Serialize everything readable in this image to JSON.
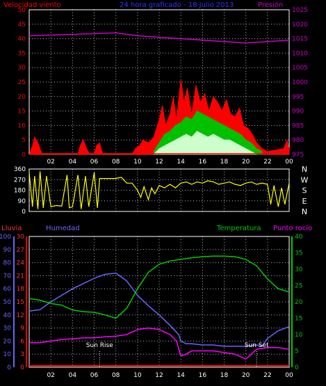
{
  "colors": {
    "wind_avg": "#ff0000",
    "wind_gust_mid": "#00c000",
    "wind_low": "#ccffcc",
    "pressure": "#cc00cc",
    "direction": "#ffff00",
    "lluvia": "#ff0000",
    "humedad": "#6666ff",
    "temperatura": "#00cc00",
    "punto_rocio": "#ff00ff",
    "grid": "#ffffff",
    "axis_text": "#ffffff"
  },
  "header": {
    "left": "Velocidad viento",
    "center": "24 hora graficado - 18 Julio 2013",
    "right": "Presión"
  },
  "chart_data": [
    {
      "type": "area",
      "name": "wind-pressure",
      "x_ticks": [
        "02",
        "04",
        "06",
        "08",
        "10",
        "12",
        "14",
        "16",
        "18",
        "20",
        "22",
        "00"
      ],
      "y_left_ticks": [
        "0",
        "5",
        "10",
        "15",
        "20",
        "25",
        "30",
        "35",
        "40",
        "45",
        "50"
      ],
      "y_right_ticks": [
        "975",
        "980",
        "985",
        "990",
        "995",
        "1000",
        "1005",
        "1010",
        "1015",
        "1020",
        "1025"
      ],
      "ylim": [
        0,
        50
      ],
      "ylim_right": [
        975,
        1025
      ],
      "series": [
        {
          "kind": "pressure",
          "values": [
            [
              0,
              1016
            ],
            [
              4,
              1016.5
            ],
            [
              8,
              1017
            ],
            [
              10,
              1016
            ],
            [
              14,
              1015
            ],
            [
              18,
              1014
            ],
            [
              20,
              1013.5
            ],
            [
              22,
              1014
            ],
            [
              24,
              1014.5
            ]
          ]
        },
        {
          "kind": "wind_avg",
          "values": [
            [
              0,
              0
            ],
            [
              0.3,
              3
            ],
            [
              0.5,
              6
            ],
            [
              0.8,
              4
            ],
            [
              1.2,
              0
            ],
            [
              4.5,
              0
            ],
            [
              4.7,
              3
            ],
            [
              5,
              5
            ],
            [
              5.3,
              2
            ],
            [
              5.6,
              0
            ],
            [
              6,
              0
            ],
            [
              6.2,
              3
            ],
            [
              6.5,
              4
            ],
            [
              6.8,
              0
            ],
            [
              9.5,
              0
            ],
            [
              9.8,
              2
            ],
            [
              10.2,
              3
            ],
            [
              10.5,
              5
            ],
            [
              11,
              4
            ],
            [
              11.5,
              6
            ],
            [
              12,
              12
            ],
            [
              12.3,
              17
            ],
            [
              12.6,
              10
            ],
            [
              13,
              14
            ],
            [
              13.3,
              20
            ],
            [
              13.6,
              12
            ],
            [
              14,
              26
            ],
            [
              14.3,
              18
            ],
            [
              14.6,
              23
            ],
            [
              15,
              14
            ],
            [
              15.4,
              24
            ],
            [
              15.8,
              18
            ],
            [
              16.2,
              21
            ],
            [
              16.6,
              15
            ],
            [
              17,
              20
            ],
            [
              17.4,
              18
            ],
            [
              17.8,
              15
            ],
            [
              18.2,
              19
            ],
            [
              18.6,
              14
            ],
            [
              19,
              13
            ],
            [
              19.4,
              16
            ],
            [
              19.8,
              10
            ],
            [
              20.2,
              9
            ],
            [
              20.6,
              7
            ],
            [
              21,
              4
            ],
            [
              21.5,
              2
            ],
            [
              22,
              1
            ],
            [
              23.5,
              2
            ],
            [
              23.8,
              5
            ],
            [
              24,
              2
            ]
          ]
        },
        {
          "kind": "wind_gust_mid",
          "values": [
            [
              11.5,
              1
            ],
            [
              12,
              4
            ],
            [
              12.5,
              7
            ],
            [
              13,
              8
            ],
            [
              13.5,
              10
            ],
            [
              14,
              11
            ],
            [
              14.5,
              13
            ],
            [
              15,
              12
            ],
            [
              15.5,
              15
            ],
            [
              16,
              14
            ],
            [
              16.5,
              13
            ],
            [
              17,
              12
            ],
            [
              17.5,
              11
            ],
            [
              18,
              10
            ],
            [
              18.5,
              9
            ],
            [
              19,
              8
            ],
            [
              19.5,
              7
            ],
            [
              20,
              5
            ],
            [
              20.5,
              4
            ],
            [
              21,
              2
            ],
            [
              21.5,
              1
            ]
          ]
        },
        {
          "kind": "wind_low",
          "values": [
            [
              11.5,
              0
            ],
            [
              12,
              2
            ],
            [
              12.5,
              3
            ],
            [
              13,
              4
            ],
            [
              13.5,
              5
            ],
            [
              14,
              6
            ],
            [
              14.5,
              7
            ],
            [
              15,
              6
            ],
            [
              15.5,
              8
            ],
            [
              16,
              7
            ],
            [
              16.5,
              6
            ],
            [
              17,
              7
            ],
            [
              17.5,
              6
            ],
            [
              18,
              5
            ],
            [
              18.5,
              5
            ],
            [
              19,
              4
            ],
            [
              19.5,
              3
            ],
            [
              20,
              2
            ],
            [
              20.5,
              1
            ],
            [
              21,
              0
            ]
          ]
        }
      ]
    },
    {
      "type": "scatter",
      "name": "wind-direction",
      "y_ticks": [
        "360",
        "270",
        "180",
        "90",
        "0"
      ],
      "y_right_labels": [
        "N",
        "W",
        "S",
        "E",
        "N"
      ],
      "ylim": [
        0,
        360
      ],
      "series": [
        {
          "kind": "direction",
          "values": [
            [
              0,
              330
            ],
            [
              0.3,
              40
            ],
            [
              0.5,
              300
            ],
            [
              0.8,
              20
            ],
            [
              1,
              340
            ],
            [
              1.3,
              30
            ],
            [
              1.6,
              300
            ],
            [
              2,
              40
            ],
            [
              2.5,
              50
            ],
            [
              3,
              45
            ],
            [
              3.5,
              310
            ],
            [
              3.7,
              30
            ],
            [
              4,
              40
            ],
            [
              4.5,
              310
            ],
            [
              4.8,
              20
            ],
            [
              5.2,
              300
            ],
            [
              5.5,
              40
            ],
            [
              6,
              330
            ],
            [
              6.3,
              30
            ],
            [
              6.5,
              280
            ],
            [
              6.8,
              280
            ],
            [
              7.5,
              280
            ],
            [
              8,
              280
            ],
            [
              8.5,
              290
            ],
            [
              9,
              240
            ],
            [
              9.5,
              240
            ],
            [
              10,
              180
            ],
            [
              10.3,
              120
            ],
            [
              10.6,
              210
            ],
            [
              11,
              100
            ],
            [
              11.3,
              200
            ],
            [
              11.6,
              150
            ],
            [
              12,
              220
            ],
            [
              12.5,
              200
            ],
            [
              13,
              230
            ],
            [
              13.5,
              200
            ],
            [
              14,
              240
            ],
            [
              14.5,
              250
            ],
            [
              15,
              230
            ],
            [
              15.5,
              250
            ],
            [
              16,
              240
            ],
            [
              16.5,
              260
            ],
            [
              17,
              250
            ],
            [
              17.5,
              230
            ],
            [
              18,
              240
            ],
            [
              18.5,
              250
            ],
            [
              19,
              230
            ],
            [
              19.5,
              220
            ],
            [
              20,
              240
            ],
            [
              20.5,
              250
            ],
            [
              21,
              230
            ],
            [
              21.5,
              240
            ],
            [
              22,
              230
            ],
            [
              22.3,
              60
            ],
            [
              22.6,
              220
            ],
            [
              23,
              40
            ],
            [
              23.3,
              200
            ],
            [
              23.6,
              60
            ],
            [
              24,
              240
            ]
          ]
        }
      ]
    },
    {
      "type": "line",
      "name": "temp-humidity",
      "headers": {
        "lluvia": "Lluvia",
        "humedad": "Humedad",
        "temperatura": "Temperatura",
        "punto_rocio": "Punto rocío"
      },
      "y_far_left_ticks": [
        "0",
        "10",
        "20",
        "30",
        "40",
        "50",
        "60",
        "70",
        "80",
        "90",
        "100"
      ],
      "y_left_ticks": [
        "0",
        "3",
        "6",
        "9",
        "12",
        "15",
        "18",
        "21",
        "24",
        "27",
        "30"
      ],
      "y_right_ticks": [
        "0",
        "5",
        "10",
        "15",
        "20",
        "25",
        "30",
        "35",
        "40"
      ],
      "ylim_humedad": [
        0,
        100
      ],
      "ylim_lluvia": [
        0,
        30
      ],
      "ylim_temp": [
        0,
        40
      ],
      "annotations": [
        {
          "text": "Sun Rise",
          "x": 6.5
        },
        {
          "text": "Sun Set",
          "x": 21.0
        }
      ],
      "series": [
        {
          "kind": "humedad",
          "values": [
            [
              0,
              43
            ],
            [
              1,
              44
            ],
            [
              2,
              50
            ],
            [
              3,
              55
            ],
            [
              4,
              60
            ],
            [
              5,
              64
            ],
            [
              6,
              68
            ],
            [
              7,
              71
            ],
            [
              8,
              72
            ],
            [
              9,
              66
            ],
            [
              10,
              55
            ],
            [
              11,
              47
            ],
            [
              12,
              40
            ],
            [
              13,
              32
            ],
            [
              13.8,
              25
            ],
            [
              14,
              20
            ],
            [
              14.5,
              18
            ],
            [
              15,
              18
            ],
            [
              16,
              17
            ],
            [
              17,
              17
            ],
            [
              18,
              16
            ],
            [
              19,
              16
            ],
            [
              20,
              16
            ],
            [
              21,
              17
            ],
            [
              21.5,
              16
            ],
            [
              22,
              22
            ],
            [
              23,
              28
            ],
            [
              24,
              31
            ]
          ]
        },
        {
          "kind": "temperatura",
          "values": [
            [
              0,
              21
            ],
            [
              1,
              20.5
            ],
            [
              2,
              19.5
            ],
            [
              3,
              19
            ],
            [
              4,
              17.5
            ],
            [
              5,
              17
            ],
            [
              6,
              16.8
            ],
            [
              7,
              16
            ],
            [
              8,
              15
            ],
            [
              9,
              18
            ],
            [
              10,
              24
            ],
            [
              11,
              29
            ],
            [
              12,
              31.5
            ],
            [
              13,
              32.5
            ],
            [
              14,
              33
            ],
            [
              15,
              33.5
            ],
            [
              16,
              33.8
            ],
            [
              17,
              34
            ],
            [
              18,
              34
            ],
            [
              19,
              33.8
            ],
            [
              20,
              33
            ],
            [
              21,
              31
            ],
            [
              22,
              27
            ],
            [
              23,
              24
            ],
            [
              24,
              23
            ]
          ]
        },
        {
          "kind": "punto_rocio",
          "values": [
            [
              0,
              7.5
            ],
            [
              1,
              7.5
            ],
            [
              2,
              8
            ],
            [
              3,
              8.5
            ],
            [
              4,
              8.7
            ],
            [
              5,
              9
            ],
            [
              6,
              9
            ],
            [
              7,
              9.3
            ],
            [
              8,
              9.5
            ],
            [
              9,
              10
            ],
            [
              10,
              11.5
            ],
            [
              11,
              12
            ],
            [
              12,
              11.5
            ],
            [
              13,
              10
            ],
            [
              13.6,
              8
            ],
            [
              14,
              3.5
            ],
            [
              14.5,
              4
            ],
            [
              15,
              5
            ],
            [
              16,
              5
            ],
            [
              17,
              5
            ],
            [
              18,
              4.5
            ],
            [
              19,
              4
            ],
            [
              20,
              2.5
            ],
            [
              20.5,
              4
            ],
            [
              21,
              5.5
            ],
            [
              22,
              6
            ],
            [
              23,
              6
            ],
            [
              24,
              5.5
            ]
          ]
        },
        {
          "kind": "lluvia",
          "values": [
            [
              0,
              0
            ],
            [
              24,
              0
            ]
          ]
        }
      ]
    }
  ]
}
